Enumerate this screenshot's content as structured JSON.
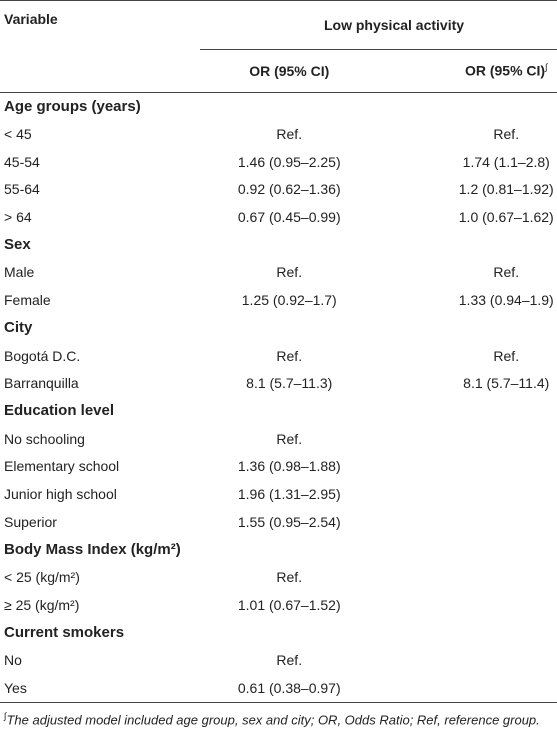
{
  "table": {
    "header": {
      "variable": "Variable",
      "group": "Low physical activity",
      "col1": "OR (95% CI)",
      "col2": "OR (95% CI)"
    },
    "footnote_mark": "∫",
    "sections": [
      {
        "title": "Age groups (years)",
        "rows": [
          [
            "< 45",
            "Ref.",
            "Ref."
          ],
          [
            "45-54",
            "1.46 (0.95–2.25)",
            "1.74 (1.1–2.8)"
          ],
          [
            "55-64",
            "0.92 (0.62–1.36)",
            "1.2 (0.81–1.92)"
          ],
          [
            "> 64",
            "0.67 (0.45–0.99)",
            "1.0 (0.67–1.62)"
          ]
        ]
      },
      {
        "title": "Sex",
        "rows": [
          [
            "Male",
            "Ref.",
            "Ref."
          ],
          [
            "Female",
            "1.25 (0.92–1.7)",
            "1.33 (0.94–1.9)"
          ]
        ]
      },
      {
        "title": "City",
        "rows": [
          [
            "Bogotá D.C.",
            "Ref.",
            "Ref."
          ],
          [
            "Barranquilla",
            "8.1 (5.7–11.3)",
            "8.1 (5.7–11.4)"
          ]
        ]
      },
      {
        "title": "Education level",
        "rows": [
          [
            "No schooling",
            "Ref."
          ],
          [
            "Elementary school",
            "1.36 (0.98–1.88)"
          ],
          [
            "Junior high school",
            "1.96 (1.31–2.95)"
          ],
          [
            "Superior",
            "1.55 (0.95–2.54)"
          ]
        ]
      },
      {
        "title": "Body Mass Index (kg/m²)",
        "rows": [
          [
            "< 25 (kg/m²)",
            "Ref."
          ],
          [
            "≥ 25 (kg/m²)",
            "1.01 (0.67–1.52)"
          ]
        ]
      },
      {
        "title": "Current smokers",
        "rows": [
          [
            "No",
            "Ref."
          ],
          [
            "Yes",
            "0.61 (0.38–0.97)"
          ]
        ]
      }
    ],
    "footnote": "The adjusted model included age group, sex and city; OR, Odds Ratio; Ref, reference group."
  }
}
